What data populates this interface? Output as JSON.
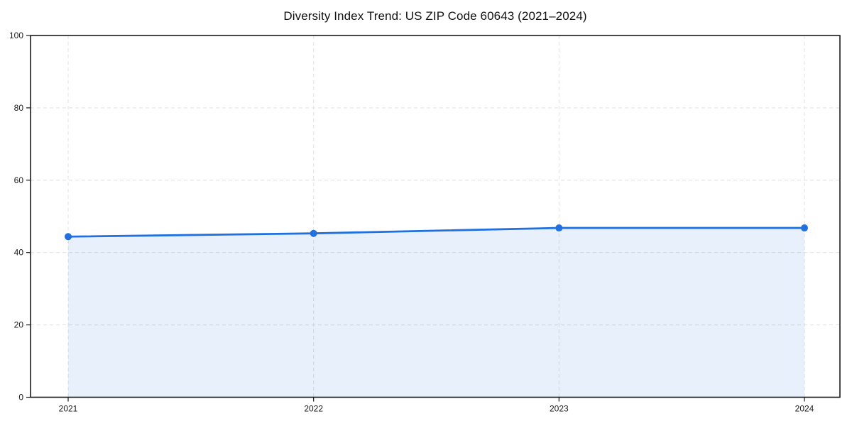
{
  "chart_data": {
    "type": "area",
    "title": "Diversity Index Trend: US ZIP Code 60643 (2021–2024)",
    "x": [
      2021,
      2022,
      2023,
      2024
    ],
    "categories": [
      "2021",
      "2022",
      "2023",
      "2024"
    ],
    "series": [
      {
        "name": "Diversity Index",
        "values": [
          44.4,
          45.3,
          46.8,
          46.8
        ]
      }
    ],
    "xlabel": "",
    "ylabel": "",
    "ylim": [
      0,
      100
    ],
    "yticks": [
      0,
      20,
      40,
      60,
      80,
      100
    ],
    "grid": true,
    "grid_style": "dashed",
    "legend": false,
    "marker": "circle",
    "colors": {
      "line": "#2170e0",
      "marker": "#2170e0",
      "fill": "#2170e0",
      "fill_opacity": 0.1,
      "grid": "#e4e4e4",
      "axis": "#1a1a1a",
      "tick_label": "#1a1a1a",
      "title": "#111111",
      "background": "#ffffff"
    }
  }
}
